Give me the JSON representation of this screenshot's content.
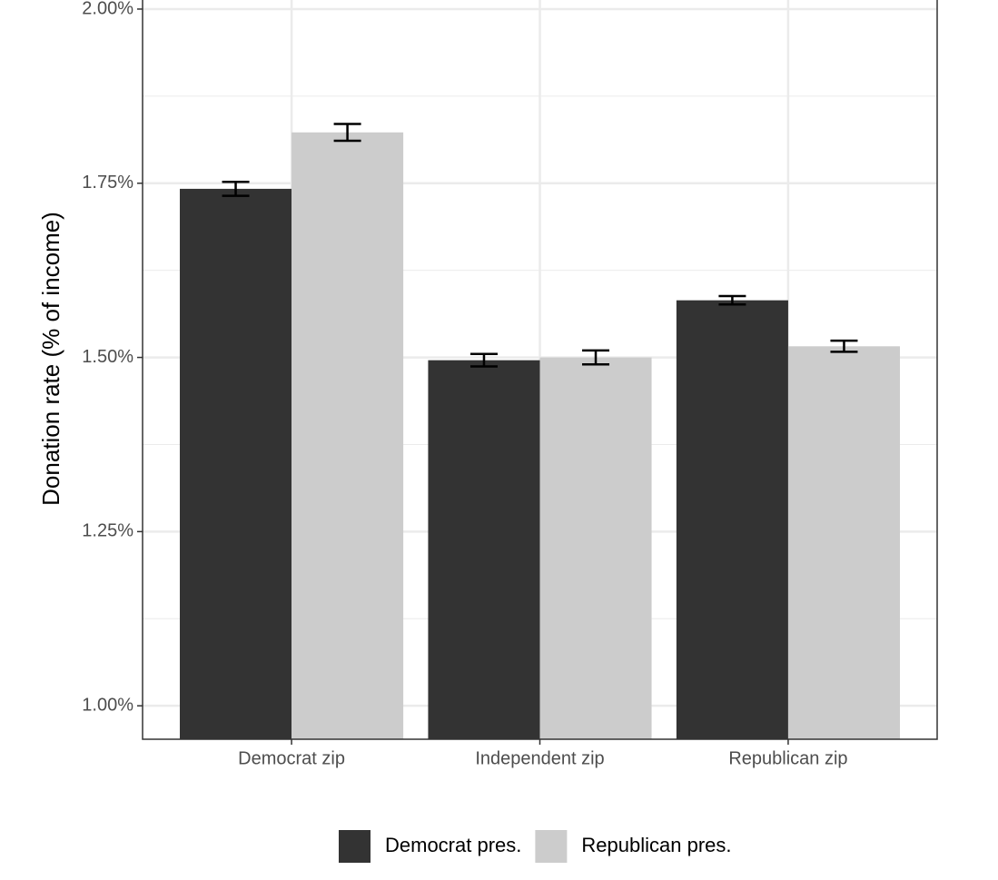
{
  "chart_data": {
    "type": "bar",
    "y_label": "Donation rate (% of income)",
    "categories": [
      "Democrat zip",
      "Independent zip",
      "Republican zip"
    ],
    "series": [
      {
        "name": "Democrat pres.",
        "color": "#333333",
        "values": [
          1.742,
          1.496,
          1.582
        ],
        "errors": [
          0.01,
          0.009,
          0.006
        ]
      },
      {
        "name": "Republican pres.",
        "color": "#cccccc",
        "values": [
          1.823,
          1.5,
          1.516
        ],
        "errors": [
          0.012,
          0.01,
          0.008
        ]
      }
    ],
    "ylim": [
      0.952,
      2.013
    ],
    "yticks": [
      {
        "value": 1.0,
        "label": "1.00%"
      },
      {
        "value": 1.25,
        "label": "1.25%"
      },
      {
        "value": 1.5,
        "label": "1.50%"
      },
      {
        "value": 1.75,
        "label": "1.75%"
      },
      {
        "value": 2.0,
        "label": "2.00%"
      }
    ],
    "minor_yticks": [
      1.125,
      1.375,
      1.625,
      1.875
    ],
    "grid": true,
    "legend": "bottom"
  }
}
